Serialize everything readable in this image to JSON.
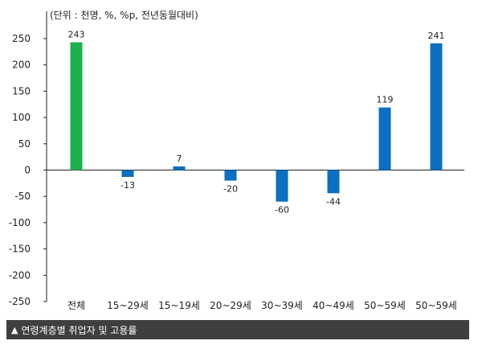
{
  "unit_note": "(단위 : 천명, %, %p, 전년동월대비)",
  "caption": "연령계층별 취업자 및 고용률",
  "caption_icon": "triangle-up-icon",
  "colors": {
    "total_bar": "#1db14b",
    "group_bar": "#0b6fc2",
    "axis": "#222222"
  },
  "chart_data": {
    "type": "bar",
    "categories": [
      "전체",
      "15~29세",
      "15~19세",
      "20~29세",
      "30~39세",
      "40~49세",
      "50~59세",
      "50~59세"
    ],
    "values": [
      243,
      -13,
      7,
      -20,
      -60,
      -44,
      119,
      241
    ],
    "value_labels": [
      "243",
      "-13",
      "7",
      "-20",
      "-60",
      "-44",
      "119",
      "241"
    ],
    "yticks": [
      "250",
      "200",
      "150",
      "100",
      "50",
      "0",
      "-50",
      "-100",
      "-150",
      "-200",
      "-250"
    ],
    "ylim": [
      -250,
      250
    ],
    "grid": false,
    "title": "",
    "xlabel": "",
    "ylabel": ""
  }
}
